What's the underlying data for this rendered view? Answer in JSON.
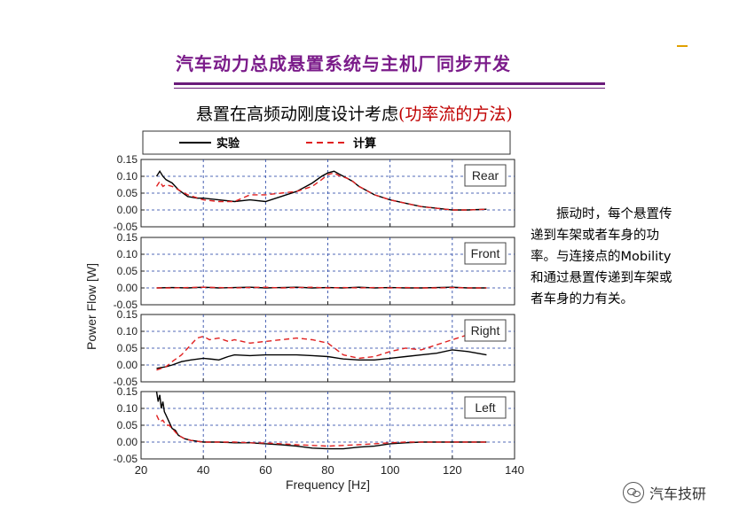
{
  "slide": {
    "title": "汽车动力总成悬置系统与主机厂同步开发",
    "subtitle_main": "悬置在高频动刚度设计考虑",
    "subtitle_paren": "(功率流的方法)",
    "side_text": "振动时，每个悬置传递到车架或者车身的功率。与连接点的Mobility和通过悬置传递到车架或者车身的力有关。",
    "watermark": "汽车技研"
  },
  "colors": {
    "title": "#7b1c8a",
    "rule": "#6a1b7a",
    "measured": "#000000",
    "calculated": "#e02020",
    "grid": "#1a3aa0"
  },
  "chart_data": {
    "type": "line",
    "xlabel": "Frequency [Hz]",
    "ylabel": "Power Flow [W]",
    "xlim": [
      20,
      140
    ],
    "xticks": [
      20,
      40,
      60,
      80,
      100,
      120,
      140
    ],
    "ylim": [
      -0.05,
      0.15
    ],
    "yticks": [
      -0.05,
      0.0,
      0.05,
      0.1,
      0.15
    ],
    "ytick_labels": [
      "-0.05",
      "0.00",
      "0.05",
      "0.10",
      "0.15"
    ],
    "legend": [
      "实验",
      "计算"
    ],
    "panels": [
      {
        "name": "Rear",
        "series": [
          {
            "name": "实验",
            "style": "solid",
            "x": [
              25,
              26,
              27,
              28,
              30,
              32,
              35,
              38,
              40,
              45,
              50,
              55,
              60,
              65,
              70,
              75,
              78,
              80,
              82,
              84,
              86,
              88,
              90,
              95,
              100,
              105,
              110,
              115,
              120,
              125,
              131
            ],
            "y": [
              0.1,
              0.115,
              0.1,
              0.09,
              0.08,
              0.06,
              0.04,
              0.035,
              0.035,
              0.03,
              0.025,
              0.03,
              0.025,
              0.04,
              0.055,
              0.08,
              0.1,
              0.11,
              0.115,
              0.105,
              0.095,
              0.085,
              0.07,
              0.045,
              0.03,
              0.02,
              0.01,
              0.005,
              0.0,
              0.0,
              0.002
            ]
          },
          {
            "name": "计算",
            "style": "dashed",
            "x": [
              25,
              26,
              27,
              28,
              30,
              32,
              35,
              40,
              45,
              50,
              55,
              60,
              65,
              70,
              75,
              78,
              80,
              82,
              84,
              86,
              88,
              90,
              95,
              100,
              105,
              110,
              115,
              120,
              125,
              131
            ],
            "y": [
              0.07,
              0.085,
              0.07,
              0.075,
              0.07,
              0.06,
              0.045,
              0.03,
              0.025,
              0.025,
              0.045,
              0.045,
              0.05,
              0.055,
              0.07,
              0.09,
              0.105,
              0.11,
              0.1,
              0.095,
              0.085,
              0.07,
              0.045,
              0.03,
              0.02,
              0.01,
              0.005,
              0.0,
              0.0,
              0.002
            ]
          }
        ]
      },
      {
        "name": "Front",
        "series": [
          {
            "name": "实验",
            "style": "solid",
            "x": [
              25,
              30,
              35,
              40,
              45,
              50,
              55,
              60,
              65,
              70,
              75,
              80,
              85,
              90,
              95,
              100,
              105,
              110,
              115,
              120,
              125,
              131
            ],
            "y": [
              0.0,
              0.001,
              0.0,
              0.002,
              0.0,
              0.001,
              0.002,
              0.0,
              0.001,
              0.002,
              0.0,
              0.001,
              0.0,
              0.002,
              0.0,
              0.001,
              0.0,
              0.0,
              0.001,
              0.002,
              0.0,
              0.0
            ]
          },
          {
            "name": "计算",
            "style": "dashed",
            "x": [
              25,
              30,
              35,
              40,
              45,
              50,
              55,
              60,
              65,
              70,
              75,
              80,
              85,
              90,
              95,
              100,
              105,
              110,
              115,
              120,
              125,
              131
            ],
            "y": [
              0.0,
              0.0,
              0.001,
              0.002,
              0.001,
              0.0,
              0.001,
              0.002,
              0.0,
              0.001,
              0.002,
              0.0,
              0.001,
              0.0,
              0.001,
              0.0,
              0.001,
              0.0,
              0.0,
              0.001,
              0.0,
              0.0
            ]
          }
        ]
      },
      {
        "name": "Right",
        "series": [
          {
            "name": "实验",
            "style": "solid",
            "x": [
              25,
              28,
              30,
              33,
              36,
              40,
              43,
              45,
              48,
              50,
              55,
              60,
              65,
              70,
              75,
              80,
              85,
              90,
              95,
              100,
              105,
              110,
              115,
              120,
              125,
              131
            ],
            "y": [
              -0.01,
              -0.005,
              0.0,
              0.01,
              0.015,
              0.02,
              0.017,
              0.015,
              0.025,
              0.03,
              0.028,
              0.03,
              0.03,
              0.03,
              0.028,
              0.025,
              0.018,
              0.015,
              0.015,
              0.02,
              0.025,
              0.03,
              0.035,
              0.045,
              0.04,
              0.03
            ]
          },
          {
            "name": "计算",
            "style": "dashed",
            "x": [
              25,
              28,
              30,
              33,
              36,
              38,
              40,
              42,
              45,
              48,
              50,
              55,
              60,
              65,
              70,
              75,
              80,
              85,
              90,
              95,
              100,
              105,
              110,
              115,
              120,
              125,
              128,
              131
            ],
            "y": [
              -0.015,
              -0.005,
              0.01,
              0.03,
              0.06,
              0.08,
              0.085,
              0.075,
              0.08,
              0.07,
              0.075,
              0.065,
              0.07,
              0.075,
              0.08,
              0.075,
              0.065,
              0.03,
              0.02,
              0.025,
              0.04,
              0.05,
              0.045,
              0.06,
              0.075,
              0.09,
              0.095,
              0.08
            ]
          }
        ]
      },
      {
        "name": "Left",
        "series": [
          {
            "name": "实验",
            "style": "solid",
            "x": [
              25,
              25.5,
              26,
              26.5,
              27,
              27.5,
              28,
              29,
              30,
              31,
              32,
              34,
              36,
              40,
              45,
              50,
              55,
              60,
              65,
              70,
              75,
              80,
              85,
              90,
              95,
              100,
              105,
              110,
              115,
              120,
              125,
              131
            ],
            "y": [
              0.15,
              0.12,
              0.14,
              0.1,
              0.12,
              0.09,
              0.08,
              0.06,
              0.04,
              0.035,
              0.02,
              0.01,
              0.005,
              0.0,
              0.0,
              -0.002,
              -0.002,
              -0.005,
              -0.008,
              -0.012,
              -0.018,
              -0.02,
              -0.02,
              -0.015,
              -0.012,
              -0.005,
              -0.002,
              0.0,
              0.0,
              0.0,
              0.0,
              0.0
            ]
          },
          {
            "name": "计算",
            "style": "dashed",
            "x": [
              25,
              26,
              27,
              28,
              29,
              30,
              31,
              32,
              34,
              36,
              40,
              45,
              50,
              55,
              60,
              65,
              70,
              75,
              80,
              85,
              90,
              95,
              100,
              105,
              110,
              115,
              120,
              125,
              131
            ],
            "y": [
              0.08,
              0.06,
              0.065,
              0.05,
              0.05,
              0.04,
              0.03,
              0.02,
              0.01,
              0.005,
              0.0,
              0.0,
              0.0,
              -0.002,
              -0.003,
              -0.005,
              -0.008,
              -0.01,
              -0.012,
              -0.01,
              -0.008,
              -0.005,
              -0.002,
              0.0,
              0.0,
              0.0,
              0.0,
              0.0,
              0.0
            ]
          }
        ]
      }
    ]
  }
}
